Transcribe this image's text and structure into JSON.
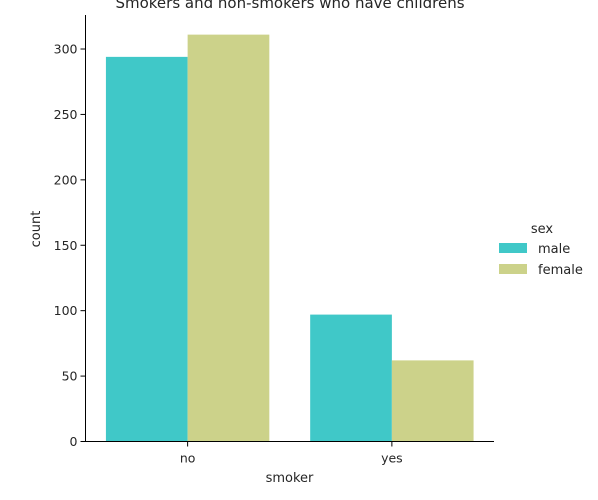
{
  "chart_data": {
    "type": "bar",
    "title": "Smokers and non-smokers who have childrens",
    "xlabel": "smoker",
    "ylabel": "count",
    "categories": [
      "no",
      "yes"
    ],
    "series": [
      {
        "name": "male",
        "values": [
          294,
          97
        ],
        "color": "#40c8c8"
      },
      {
        "name": "female",
        "values": [
          311,
          62
        ],
        "color": "#ccd28a"
      }
    ],
    "ylim": [
      0,
      326
    ],
    "yticks": [
      0,
      50,
      100,
      150,
      200,
      250,
      300
    ],
    "legend": {
      "title": "sex",
      "placement": "right"
    },
    "grid": false
  }
}
